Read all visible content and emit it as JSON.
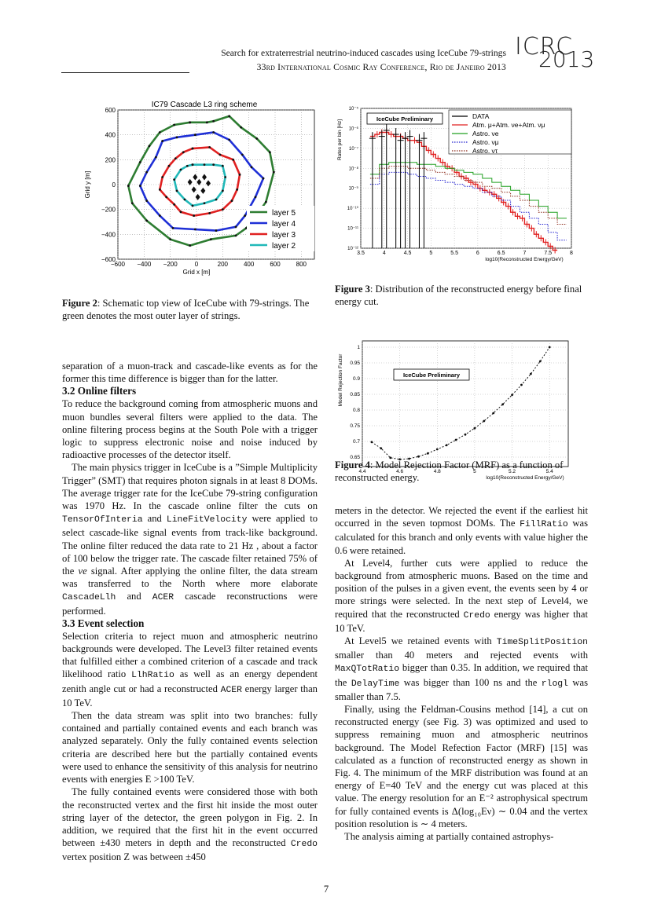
{
  "header": {
    "title": "Search for extraterrestrial neutrino-induced cascades using IceCube 79-strings",
    "conference": "33rd International Cosmic Ray Conference, Rio de Janeiro 2013",
    "logo_text_top": "ICRC",
    "logo_text_bottom": "2013"
  },
  "figures": {
    "fig2": {
      "label": "Figure 2",
      "caption": ": Schematic top view of IceCube with 79-strings. The green denotes the most outer layer of strings."
    },
    "fig3": {
      "label": "Figure 3",
      "caption": ": Distribution of the reconstructed energy before final energy cut."
    },
    "fig4": {
      "label": "Figure 4",
      "caption": ": Model Rejection Factor (MRF) as a function of reconstructed energy."
    }
  },
  "chart_data": [
    {
      "type": "line",
      "title": "IC79 Cascade L3 ring scheme",
      "xlabel": "Grid x [m]",
      "ylabel": "Grid y [m]",
      "xlim": [
        -600,
        900
      ],
      "ylim": [
        -600,
        600
      ],
      "xticks": [
        "−600",
        "−400",
        "−200",
        "0",
        "200",
        "400",
        "600",
        "800"
      ],
      "yticks": [
        "600",
        "400",
        "200",
        "0",
        "−200",
        "−400",
        "−600"
      ],
      "legend_position": "bottom-right",
      "series": [
        {
          "name": "layer 5",
          "color": "#2e7d32",
          "points": [
            [
              -50,
              500
            ],
            [
              80,
              500
            ],
            [
              130,
              510
            ],
            [
              250,
              550
            ],
            [
              340,
              460
            ],
            [
              460,
              370
            ],
            [
              560,
              260
            ],
            [
              590,
              100
            ],
            [
              530,
              -140
            ],
            [
              430,
              -290
            ],
            [
              380,
              -350
            ],
            [
              300,
              -410
            ],
            [
              110,
              -440
            ],
            [
              -50,
              -490
            ],
            [
              -200,
              -440
            ],
            [
              -380,
              -290
            ],
            [
              -490,
              -150
            ],
            [
              -520,
              -10
            ],
            [
              -430,
              180
            ],
            [
              -360,
              310
            ],
            [
              -280,
              420
            ],
            [
              -170,
              480
            ],
            [
              -50,
              500
            ]
          ]
        },
        {
          "name": "layer 4",
          "color": "#1e2fd6",
          "points": [
            [
              -10,
              400
            ],
            [
              130,
              420
            ],
            [
              250,
              360
            ],
            [
              350,
              240
            ],
            [
              420,
              140
            ],
            [
              510,
              50
            ],
            [
              450,
              -100
            ],
            [
              370,
              -250
            ],
            [
              300,
              -340
            ],
            [
              150,
              -370
            ],
            [
              -10,
              -360
            ],
            [
              -180,
              -350
            ],
            [
              -280,
              -250
            ],
            [
              -380,
              -130
            ],
            [
              -430,
              -10
            ],
            [
              -380,
              100
            ],
            [
              -310,
              220
            ],
            [
              -260,
              350
            ],
            [
              -150,
              380
            ],
            [
              -10,
              400
            ]
          ]
        },
        {
          "name": "layer 3",
          "color": "#e02020",
          "points": [
            [
              -30,
              290
            ],
            [
              100,
              300
            ],
            [
              180,
              240
            ],
            [
              280,
              200
            ],
            [
              330,
              80
            ],
            [
              310,
              -40
            ],
            [
              270,
              -130
            ],
            [
              200,
              -200
            ],
            [
              100,
              -230
            ],
            [
              -20,
              -250
            ],
            [
              -120,
              -220
            ],
            [
              -170,
              -160
            ],
            [
              -230,
              -100
            ],
            [
              -280,
              -40
            ],
            [
              -260,
              60
            ],
            [
              -210,
              150
            ],
            [
              -160,
              210
            ],
            [
              -100,
              260
            ],
            [
              -30,
              290
            ]
          ]
        },
        {
          "name": "layer 2",
          "color": "#20b8b8",
          "points": [
            [
              -30,
              160
            ],
            [
              60,
              160
            ],
            [
              130,
              160
            ],
            [
              200,
              150
            ],
            [
              220,
              60
            ],
            [
              200,
              -50
            ],
            [
              150,
              -120
            ],
            [
              60,
              -150
            ],
            [
              -30,
              -170
            ],
            [
              -90,
              -120
            ],
            [
              -150,
              -50
            ],
            [
              -170,
              40
            ],
            [
              -120,
              120
            ],
            [
              -70,
              150
            ],
            [
              -30,
              160
            ]
          ]
        }
      ],
      "inner_points": [
        [
          -10,
          60
        ],
        [
          60,
          60
        ],
        [
          -50,
          20
        ],
        [
          20,
          20
        ],
        [
          90,
          10
        ],
        [
          -20,
          -40
        ],
        [
          50,
          -50
        ],
        [
          10,
          -100
        ]
      ]
    },
    {
      "type": "bar",
      "annotation": "IceCube Preliminary",
      "xlabel": "log10(Reconstructed Energy/GeV)",
      "ylabel": "Rates per bin [Hz]",
      "xlim": [
        3.5,
        8
      ],
      "ylim_log10": [
        -12,
        -5
      ],
      "xticks": [
        "3.5",
        "4",
        "4.5",
        "5",
        "5.5",
        "6",
        "6.5",
        "7",
        "7.5",
        "8"
      ],
      "yticks": [
        "10⁻⁵",
        "10⁻⁶",
        "10⁻⁷",
        "10⁻⁸",
        "10⁻⁹",
        "10⁻¹⁰",
        "10⁻¹¹",
        "10⁻¹²"
      ],
      "legend_position": "top-right",
      "legend": [
        {
          "name": "DATA",
          "color": "#000000",
          "style": "solid"
        },
        {
          "name": "Atm. μ+Atm. νe+Atm. νμ",
          "color": "#e02020",
          "style": "solid"
        },
        {
          "name": "Astro. νe",
          "color": "#22a022",
          "style": "solid"
        },
        {
          "name": "Astro. νμ",
          "color": "#2020d0",
          "style": "dotted"
        },
        {
          "name": "Astro. ντ",
          "color": "#8b2a1a",
          "style": "dotted"
        }
      ],
      "series": [
        {
          "name": "DATA",
          "x": [
            3.75,
            3.95,
            4.05,
            4.25,
            4.35,
            4.45,
            4.55,
            4.75,
            4.85
          ],
          "log10_y": [
            -6.5,
            -6.4,
            -6.1,
            -6.3,
            -6.6,
            -6.5,
            -6.4,
            -6.6,
            -6.5
          ]
        },
        {
          "name": "Atm. μ+Atm. νe+Atm. νμ",
          "x": [
            3.75,
            3.85,
            3.95,
            4.05,
            4.15,
            4.25,
            4.35,
            4.45,
            4.55,
            4.65,
            4.75,
            4.85,
            4.95,
            5.05,
            5.15,
            5.25,
            5.35,
            5.45,
            5.55,
            5.65,
            5.75,
            5.85,
            5.95,
            6.05,
            6.15,
            6.25,
            6.35,
            6.45,
            6.55,
            6.65,
            6.75,
            6.85,
            6.95,
            7.05,
            7.15,
            7.25,
            7.35,
            7.45,
            7.55,
            7.65
          ],
          "log10_y": [
            -6.4,
            -6.3,
            -6.2,
            -6.2,
            -6.3,
            -6.4,
            -6.4,
            -6.5,
            -6.6,
            -6.6,
            -6.7,
            -6.9,
            -7.1,
            -7.3,
            -7.5,
            -7.7,
            -7.9,
            -8.0,
            -8.2,
            -8.4,
            -8.5,
            -8.7,
            -8.8,
            -9.0,
            -9.1,
            -9.2,
            -9.3,
            -9.5,
            -9.7,
            -9.9,
            -10.2,
            -10.4,
            -10.5,
            -10.8,
            -11.0,
            -11.3,
            -11.5,
            -11.7,
            -11.9,
            -12.1
          ]
        },
        {
          "name": "Astro. νe",
          "x": [
            3.8,
            4.0,
            4.2,
            4.4,
            4.6,
            4.8,
            5.0,
            5.2,
            5.4,
            5.6,
            5.8,
            6.0,
            6.2,
            6.4,
            6.6,
            6.8,
            7.0,
            7.2,
            7.4,
            7.6,
            7.8
          ],
          "log10_y": [
            -8.3,
            -7.8,
            -7.7,
            -7.7,
            -7.7,
            -7.8,
            -7.8,
            -7.9,
            -8.0,
            -8.1,
            -8.2,
            -8.3,
            -8.5,
            -8.7,
            -8.9,
            -9.1,
            -9.3,
            -9.6,
            -9.9,
            -10.2,
            -10.5
          ]
        },
        {
          "name": "Astro. νμ",
          "x": [
            3.8,
            4.0,
            4.2,
            4.4,
            4.6,
            4.8,
            5.0,
            5.2,
            5.4,
            5.6,
            5.8,
            6.0,
            6.2,
            6.4,
            6.6,
            6.8,
            7.0,
            7.2,
            7.4,
            7.6,
            7.8
          ],
          "log10_y": [
            -8.8,
            -8.3,
            -8.2,
            -8.2,
            -8.3,
            -8.4,
            -8.5,
            -8.6,
            -8.7,
            -8.8,
            -8.9,
            -9.0,
            -9.2,
            -9.4,
            -9.6,
            -9.9,
            -10.2,
            -10.5,
            -10.8,
            -11.2,
            -11.6
          ]
        },
        {
          "name": "Astro. ντ",
          "x": [
            3.8,
            4.0,
            4.2,
            4.4,
            4.6,
            4.8,
            5.0,
            5.2,
            5.4,
            5.6,
            5.8,
            6.0,
            6.2,
            6.4,
            6.6,
            6.8,
            7.0,
            7.2,
            7.4,
            7.6,
            7.8
          ],
          "log10_y": [
            -8.5,
            -8.0,
            -7.9,
            -7.9,
            -8.0,
            -8.0,
            -8.1,
            -8.2,
            -8.3,
            -8.4,
            -8.6,
            -8.7,
            -8.9,
            -9.0,
            -9.2,
            -9.4,
            -9.6,
            -9.9,
            -10.2,
            -10.5,
            -10.8
          ]
        }
      ]
    },
    {
      "type": "line",
      "annotation": "IceCube Preliminary",
      "xlabel": "log10(Reconstructed Energy/GeV)",
      "ylabel": "Model Rejection Factor",
      "xlim": [
        4.4,
        5.5
      ],
      "ylim": [
        0.62,
        1.02
      ],
      "xticks": [
        "4.4",
        "4.6",
        "4.8",
        "5",
        "5.2",
        "5.4"
      ],
      "yticks": [
        "1",
        "0.95",
        "0.9",
        "0.85",
        "0.8",
        "0.75",
        "0.7",
        "0.65"
      ],
      "series": [
        {
          "name": "",
          "x": [
            4.45,
            4.5,
            4.55,
            4.6,
            4.65,
            4.7,
            4.75,
            4.8,
            4.85,
            4.9,
            4.95,
            5.0,
            5.05,
            5.1,
            5.15,
            5.2,
            5.25,
            5.3,
            5.35,
            5.4
          ],
          "y": [
            0.698,
            0.678,
            0.648,
            0.643,
            0.645,
            0.652,
            0.662,
            0.675,
            0.688,
            0.705,
            0.722,
            0.742,
            0.765,
            0.79,
            0.818,
            0.848,
            0.88,
            0.915,
            0.955,
            1.0
          ]
        }
      ]
    }
  ],
  "left_column": {
    "p0": "separation of a muon-track and cascade-like events as for the former this time difference is bigger than for the latter.",
    "sec32": "3.2   Online filters",
    "p1": "To reduce the background coming from atmospheric muons and muon bundles several filters were applied to the data. The online filtering process begins at the South Pole with a trigger logic to suppress electronic noise and noise induced by radioactive processes of the detector itself.",
    "p2a": "The main physics trigger in IceCube is a ”Simple Multiplicity Trigger” (SMT) that requires photon signals in at least 8 DOMs. The average trigger rate for the IceCube 79-string configuration was 1970 Hz. In the cascade online filter the cuts on ",
    "p2_code1": "TensorOfInteria",
    "p2b": " and ",
    "p2_code2": "LineFitVelocity",
    "p2c": " were applied to select cascade-like signal events from track-like background. The online filter reduced the data rate to  21 Hz , about a factor of 100 below the trigger rate. The cascade filter retained  75% of the ",
    "p2_nu": "νe",
    "p2d": " signal. After applying the online filter, the data stream was transferred to the North where more elaborate ",
    "p2_code3": "CascadeLlh",
    "p2e": " and ",
    "p2_code4": "ACER",
    "p2f": " cascade reconstructions were performed.",
    "sec33": "3.3   Event selection",
    "p3a": "Selection criteria to reject muon and atmospheric neutrino backgrounds were developed. The Level3 filter retained events that fulfilled either a combined criterion of a cascade and track likelihood ratio ",
    "p3_code1": "LlhRatio",
    "p3b": " as well as an energy dependent zenith angle cut or had a reconstructed ",
    "p3_code2": "ACER",
    "p3c": " energy larger than 10 TeV.",
    "p4": "Then the data stream was split into two branches: fully contained and partially contained events and each branch was analyzed separately. Only the fully contained events selection criteria are described here but the partially contained events were used to enhance the sensitivity of this analysis for neutrino events with energies E >100 TeV.",
    "p5a": "The fully contained events were considered those with both the reconstructed vertex and the first hit inside the most outer string layer of the detector, the green polygon in Fig. 2. In addition, we required that the first hit in the event occurred between ±430 meters in depth and the reconstructed ",
    "p5_code1": "Credo",
    "p5b": " vertex position Z was between ±450"
  },
  "right_column": {
    "p0a": "meters in the detector. We rejected the event if the earliest hit occurred in the seven topmost DOMs. The ",
    "p0_code1": "FillRatio",
    "p0b": " was calculated for this branch and only events with value higher the 0.6 were retained.",
    "p1a": "At Level4, further cuts were applied to reduce the background from atmospheric muons. Based on the time and position of the pulses in a given event, the events seen by 4 or more strings were selected. In the next step of Level4, we required that the reconstructed ",
    "p1_code1": "Credo",
    "p1b": " energy was higher that 10 TeV.",
    "p2a": "At Level5 we retained events with ",
    "p2_code1": "TimeSplitPosition",
    "p2b": " smaller than 40 meters and rejected events with ",
    "p2_code2": "MaxQTotRatio",
    "p2c": " bigger than 0.35. In addition, we required that the ",
    "p2_code3": "DelayTime",
    "p2d": " was bigger than 100 ns and the ",
    "p2_code4": "rlogl",
    "p2e": " was smaller than 7.5.",
    "p3": "Finally, using the Feldman-Cousins method [14], a cut on reconstructed energy (see Fig. 3) was optimized and used to suppress remaining muon and atmospheric neutrinos background. The Model Refection Factor (MRF) [15] was calculated as a function of reconstructed energy as shown in Fig. 4. The minimum of the MRF distribution was found at an energy of E=40 TeV and the energy cut was placed at this value. The energy resolution for an E⁻² astrophysical spectrum for fully contained events is Δ(log₁₀Eν) ∼ 0.04 and the vertex position resolution is ∼ 4 meters.",
    "p4": "The analysis aiming at partially contained astrophys-"
  },
  "page_number": "7"
}
